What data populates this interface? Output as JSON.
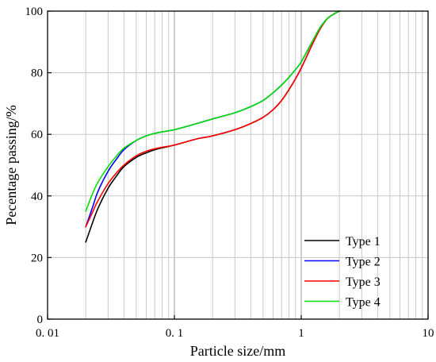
{
  "chart_data": {
    "type": "line",
    "xscale": "log",
    "xlim": [
      0.01,
      10
    ],
    "ylim": [
      0,
      100
    ],
    "xlabel": "Particle size/mm",
    "ylabel": "Pecentage passing/%",
    "x_tick_labels": [
      "0. 01",
      "0. 1",
      "1",
      "10"
    ],
    "x_tick_values": [
      0.01,
      0.1,
      1,
      10
    ],
    "y_ticks": [
      0,
      20,
      40,
      60,
      80,
      100
    ],
    "grid": true,
    "legend_position": "bottom-right",
    "series": [
      {
        "name": "Type 1",
        "color": "#000000",
        "x": [
          0.02,
          0.0225,
          0.025,
          0.03,
          0.035,
          0.04,
          0.05,
          0.06,
          0.07,
          0.08,
          0.1,
          0.15,
          0.2,
          0.3,
          0.4,
          0.5,
          0.6,
          0.7,
          0.8,
          0.9,
          1.0,
          1.2,
          1.4,
          1.6,
          1.8,
          2.0
        ],
        "y": [
          25,
          31,
          36,
          42.5,
          46.5,
          49.5,
          52.5,
          54,
          55,
          55.6,
          56.5,
          58.5,
          59.5,
          61.5,
          63.5,
          65.5,
          68,
          71,
          74.5,
          78,
          81.5,
          88.5,
          94,
          97.5,
          99,
          100
        ]
      },
      {
        "name": "Type 2",
        "color": "#0000ff",
        "x": [
          0.02,
          0.0225,
          0.025,
          0.03,
          0.035,
          0.04,
          0.05,
          0.06,
          0.07,
          0.08,
          0.1,
          0.15,
          0.2,
          0.3,
          0.4,
          0.5,
          0.6,
          0.7,
          0.8,
          0.9,
          1.0,
          1.2,
          1.4,
          1.6,
          1.8,
          2.0
        ],
        "y": [
          30,
          36,
          41.5,
          48,
          52,
          55,
          58,
          59.5,
          60.3,
          60.8,
          61.5,
          63.5,
          65,
          67,
          69,
          71,
          73.5,
          76,
          78.5,
          81,
          83.5,
          89.5,
          94.5,
          97.5,
          99,
          100
        ]
      },
      {
        "name": "Type 3",
        "color": "#ff0000",
        "x": [
          0.02,
          0.0225,
          0.025,
          0.03,
          0.035,
          0.04,
          0.05,
          0.06,
          0.07,
          0.08,
          0.1,
          0.15,
          0.2,
          0.3,
          0.4,
          0.5,
          0.6,
          0.7,
          0.8,
          0.9,
          1.0,
          1.2,
          1.4,
          1.6,
          1.8,
          2.0
        ],
        "y": [
          30,
          34.5,
          38.5,
          44,
          47.5,
          50,
          53,
          54.5,
          55.3,
          55.8,
          56.5,
          58.5,
          59.5,
          61.5,
          63.5,
          65.5,
          68,
          71,
          74.5,
          78,
          81.5,
          88.5,
          94,
          97.5,
          99,
          100
        ]
      },
      {
        "name": "Type 4",
        "color": "#00e000",
        "x": [
          0.02,
          0.0225,
          0.025,
          0.03,
          0.035,
          0.04,
          0.05,
          0.06,
          0.07,
          0.08,
          0.1,
          0.15,
          0.2,
          0.3,
          0.4,
          0.5,
          0.6,
          0.7,
          0.8,
          0.9,
          1.0,
          1.2,
          1.4,
          1.6,
          1.8,
          2.0
        ],
        "y": [
          35,
          40.5,
          44.5,
          49.5,
          53,
          55.5,
          58,
          59.5,
          60.3,
          60.8,
          61.5,
          63.5,
          65,
          67,
          69,
          71,
          73.5,
          76,
          78.5,
          81,
          83.5,
          89.5,
          94.5,
          97.5,
          99,
          100
        ]
      }
    ]
  }
}
